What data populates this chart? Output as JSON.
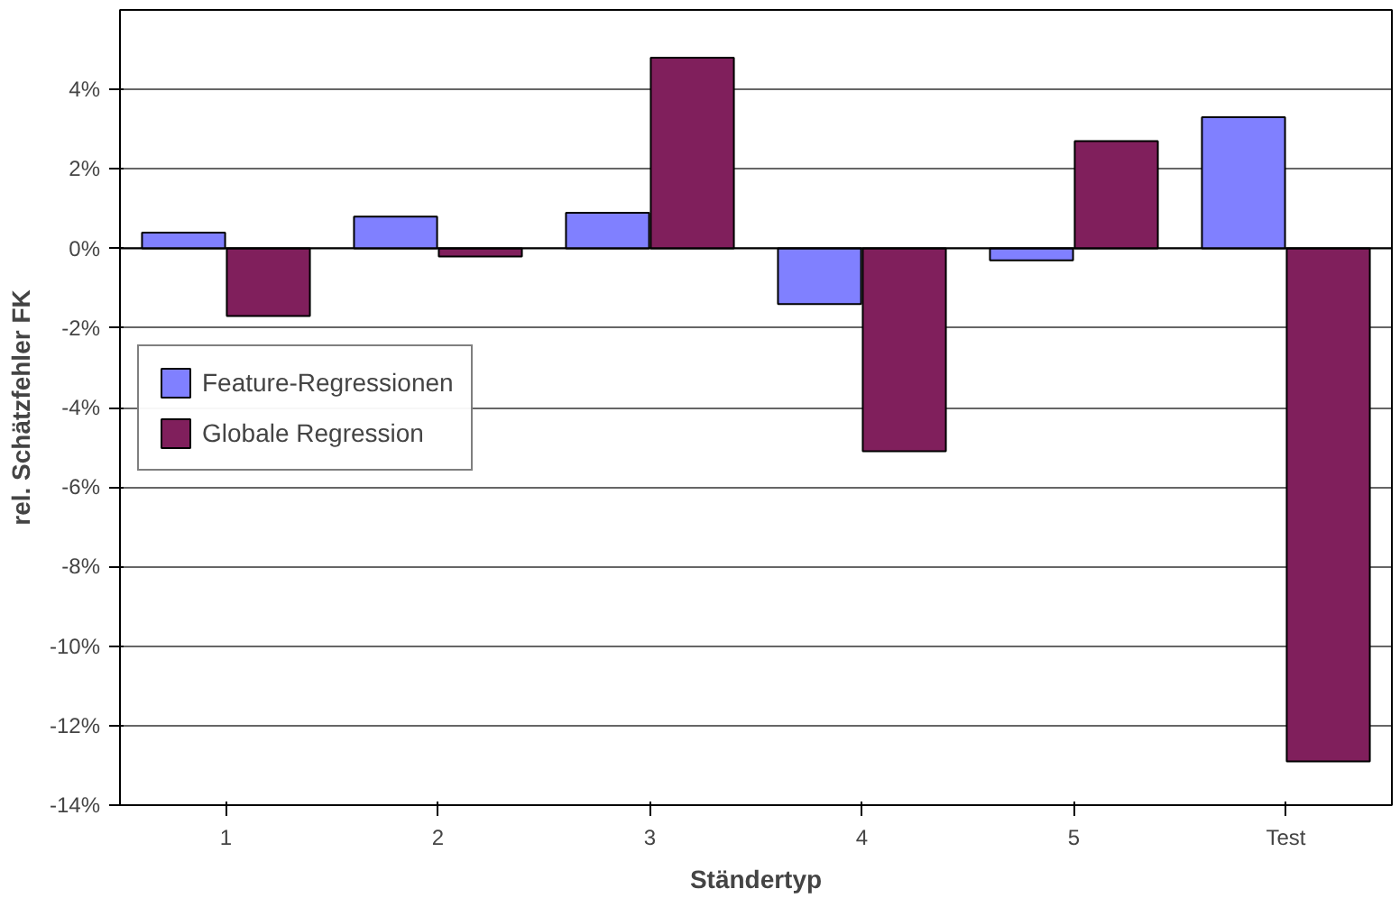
{
  "chart_data": {
    "type": "bar",
    "xlabel": "Ständertyp",
    "ylabel": "rel. Schätzfehler FK",
    "categories": [
      "1",
      "2",
      "3",
      "4",
      "5",
      "Test"
    ],
    "series": [
      {
        "name": "Feature-Regressionen",
        "color": "#8080ff",
        "values": [
          0.4,
          0.8,
          0.9,
          -1.4,
          -0.3,
          3.3
        ]
      },
      {
        "name": "Globale Regression",
        "color": "#801f5c",
        "values": [
          -1.7,
          -0.2,
          4.8,
          -5.1,
          2.7,
          -12.9
        ]
      }
    ],
    "ylim": [
      -14,
      6
    ],
    "yticks": [
      {
        "value": -14,
        "label": "-14%"
      },
      {
        "value": -12,
        "label": "-12%"
      },
      {
        "value": -10,
        "label": "-10%"
      },
      {
        "value": -8,
        "label": "-8%"
      },
      {
        "value": -6,
        "label": "-6%"
      },
      {
        "value": -4,
        "label": "-4%"
      },
      {
        "value": -2,
        "label": "-2%"
      },
      {
        "value": 0,
        "label": "0%"
      },
      {
        "value": 2,
        "label": "2%"
      },
      {
        "value": 4,
        "label": "4%"
      }
    ],
    "grid": "y",
    "legend": "left"
  }
}
